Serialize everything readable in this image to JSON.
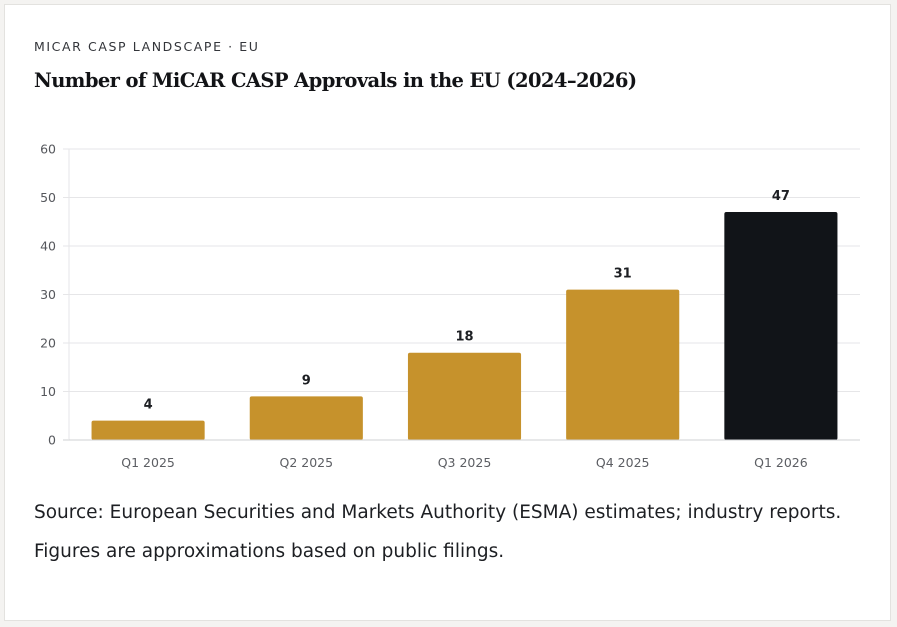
{
  "card": {
    "eyebrow": "MICAR CASP LANDSCAPE · EU",
    "title": "Number of MiCAR CASP Approvals in the EU (2024–2026)",
    "source": "Source: European Securities and Markets Authority (ESMA) estimates; industry reports. Figures are approximations based on public filings."
  },
  "colors": {
    "bar_default": "#c6922c",
    "bar_highlight": "#111418",
    "gridline": "#e6e6e8",
    "axis": "#cfd0d3"
  },
  "chart_data": {
    "type": "bar",
    "title": "Number of MiCAR CASP Approvals in the EU (2024–2026)",
    "xlabel": "",
    "ylabel": "",
    "categories": [
      "Q1 2025",
      "Q2 2025",
      "Q3 2025",
      "Q4 2025",
      "Q1 2026"
    ],
    "values": [
      4,
      9,
      18,
      31,
      47
    ],
    "highlight_index": 4,
    "data_labels": [
      "4",
      "9",
      "18",
      "31",
      "47"
    ],
    "ylim": [
      0,
      60
    ],
    "yticks": [
      0,
      10,
      20,
      30,
      40,
      50,
      60
    ],
    "grid": true,
    "legend": "none"
  }
}
